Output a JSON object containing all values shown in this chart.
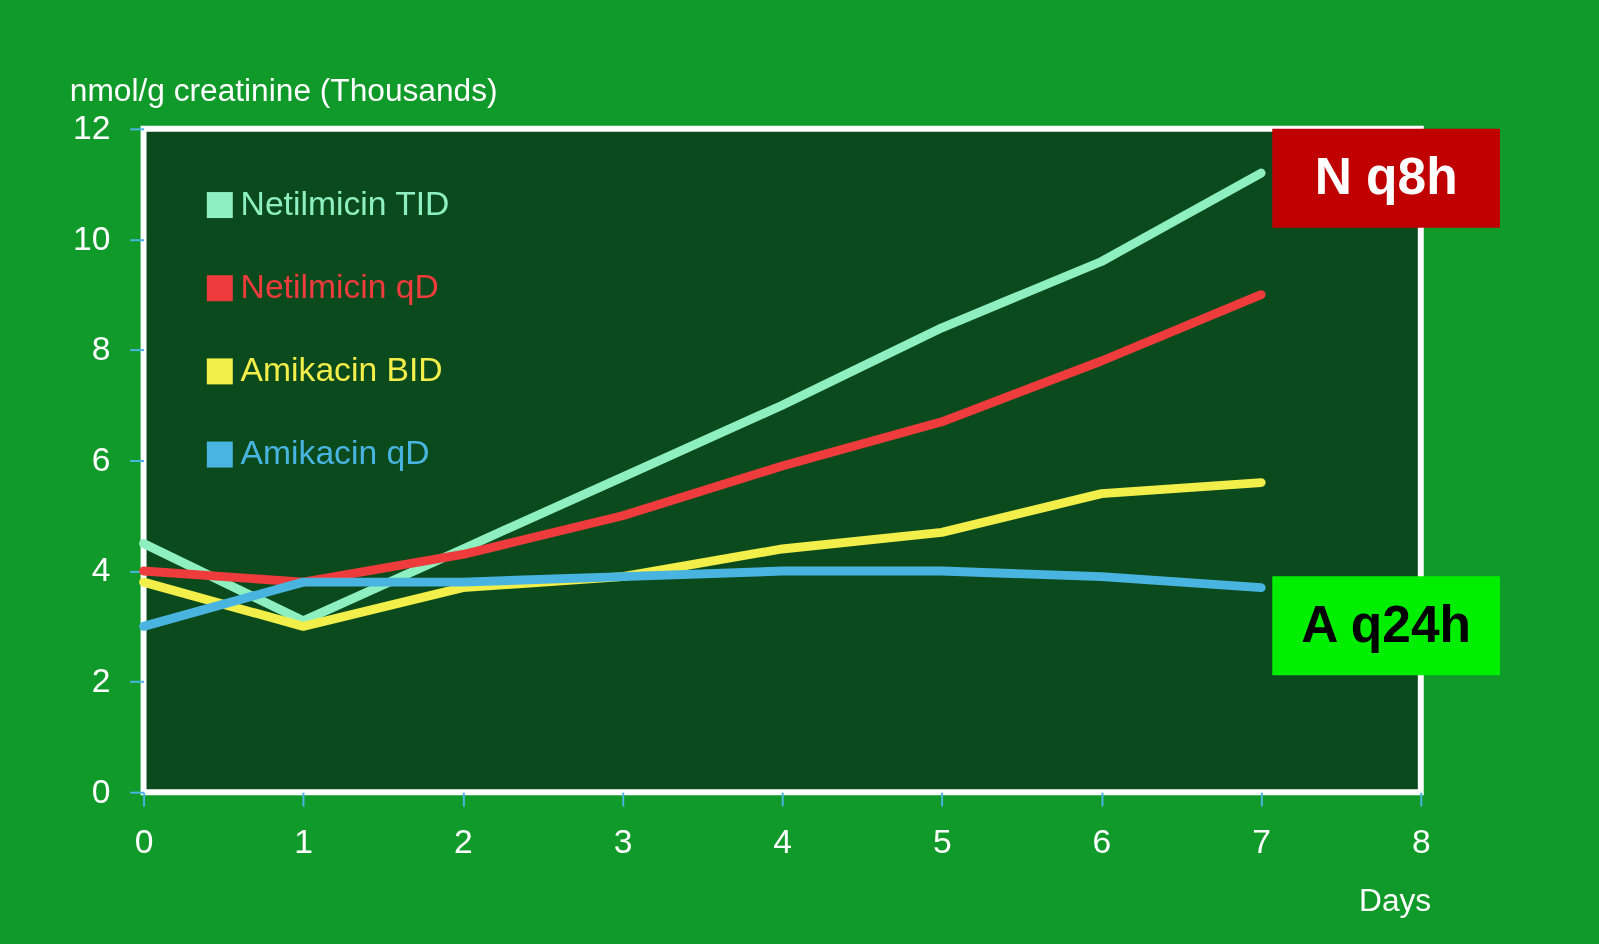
{
  "chart_data": {
    "type": "line",
    "ylabel": "nmol/g creatinine (Thousands)",
    "xlabel": "Days",
    "x": [
      0,
      1,
      2,
      3,
      4,
      5,
      6,
      7
    ],
    "series": [
      {
        "name": "Netilmicin TID",
        "color": "#8ef0c0",
        "values": [
          4.5,
          3.1,
          4.4,
          5.7,
          7.0,
          8.4,
          9.6,
          11.2
        ]
      },
      {
        "name": "Netilmicin qD",
        "color": "#ee3b3b",
        "values": [
          4.0,
          3.8,
          4.3,
          5.0,
          5.9,
          6.7,
          7.8,
          9.0
        ]
      },
      {
        "name": "Amikacin BID",
        "color": "#f2ee4a",
        "values": [
          3.8,
          3.0,
          3.7,
          3.9,
          4.4,
          4.7,
          5.4,
          5.6
        ]
      },
      {
        "name": "Amikacin qD",
        "color": "#4ab4e0",
        "values": [
          3.0,
          3.8,
          3.8,
          3.9,
          4.0,
          4.0,
          3.9,
          3.7
        ]
      }
    ],
    "xlim": [
      0,
      8
    ],
    "xticks": [
      0,
      1,
      2,
      3,
      4,
      5,
      6,
      7,
      8
    ],
    "ylim": [
      0,
      12
    ],
    "yticks": [
      0,
      2,
      4,
      6,
      8,
      10,
      12
    ],
    "grid": false,
    "legend": "top left",
    "marker": "none",
    "line_style": "solid",
    "annotations": [
      "N q8h",
      "A q24h"
    ]
  }
}
